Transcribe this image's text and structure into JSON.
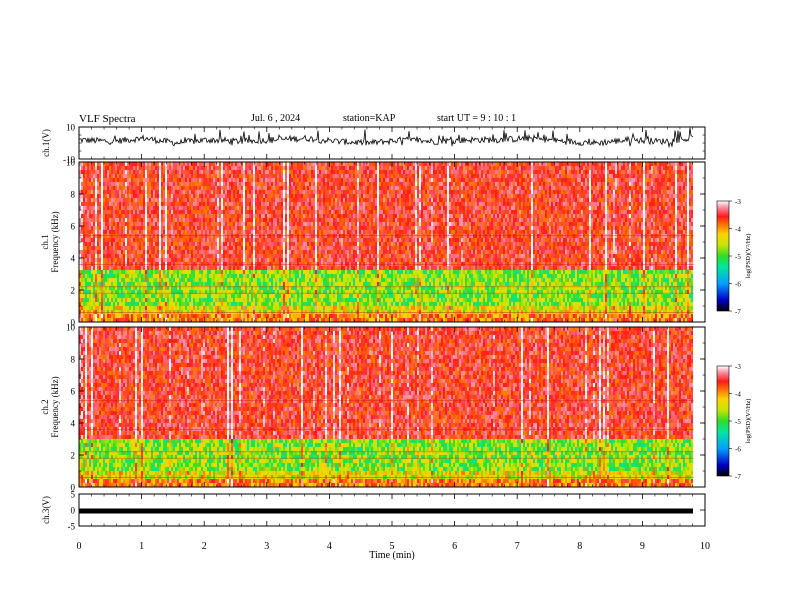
{
  "header": {
    "title": "VLF Spectra",
    "date": "Jul. 6 , 2024",
    "station": "station=KAP",
    "start": "start UT = 9 : 10 : 1"
  },
  "chart_data": [
    {
      "type": "line",
      "panel": "ch1-waveform",
      "ylabel": "ch.1(V)",
      "yticks": [
        "10",
        "-10"
      ],
      "ylim": [
        -10,
        10
      ],
      "xlim": [
        0,
        10
      ],
      "description_values": "noise waveform, roughly 0 to +3 V with spikes",
      "series": [
        {
          "values": [
            2,
            1,
            3,
            0,
            2,
            1,
            2,
            3,
            1,
            0,
            2,
            1,
            2,
            2,
            3,
            1,
            0,
            2,
            1,
            3
          ]
        }
      ]
    },
    {
      "type": "heatmap",
      "panel": "ch1-spectrogram",
      "ylabel": "ch.1\nFrequency (kHz)",
      "ylabel_line1": "ch.1",
      "ylabel_line2": "Frequency (kHz)",
      "yticks": [
        "0",
        "2",
        "4",
        "6",
        "8",
        "10"
      ],
      "ylim": [
        0,
        10
      ],
      "xlim": [
        0,
        10
      ],
      "colorbar": {
        "label": "log(PSD)(V²/Hz)",
        "ticks": [
          "-3",
          "-4",
          "-5",
          "-6",
          "-7"
        ],
        "range": [
          -7,
          -3
        ]
      }
    },
    {
      "type": "heatmap",
      "panel": "ch2-spectrogram",
      "ylabel_line1": "ch.2",
      "ylabel_line2": "Frequency (kHz)",
      "yticks": [
        "0",
        "2",
        "4",
        "6",
        "8",
        "10"
      ],
      "ylim": [
        0,
        10
      ],
      "xlim": [
        0,
        10
      ],
      "colorbar": {
        "label": "log(PSD)(V²/Hz)",
        "ticks": [
          "-3",
          "-4",
          "-5",
          "-6",
          "-7"
        ],
        "range": [
          -7,
          -3
        ]
      }
    },
    {
      "type": "line",
      "panel": "ch3-waveform",
      "ylabel": "ch.3(V)",
      "yticks": [
        "5",
        "0",
        "-5"
      ],
      "ylim": [
        -5,
        5
      ],
      "xlim": [
        0,
        10
      ],
      "series": [
        {
          "values": [
            -1,
            -1,
            -1,
            -1,
            -1,
            -1,
            -1,
            -1,
            -1,
            -1
          ]
        }
      ]
    }
  ],
  "xaxis": {
    "label": "Time (min)",
    "ticks": [
      "0",
      "1",
      "2",
      "3",
      "4",
      "5",
      "6",
      "7",
      "8",
      "9",
      "10"
    ],
    "data_end": 9.82
  },
  "colors": {
    "high": "#ff1a1a",
    "mid_high": "#ffd800",
    "mid": "#3cdc28",
    "low": "#00c8ff",
    "lowest": "#000000"
  }
}
